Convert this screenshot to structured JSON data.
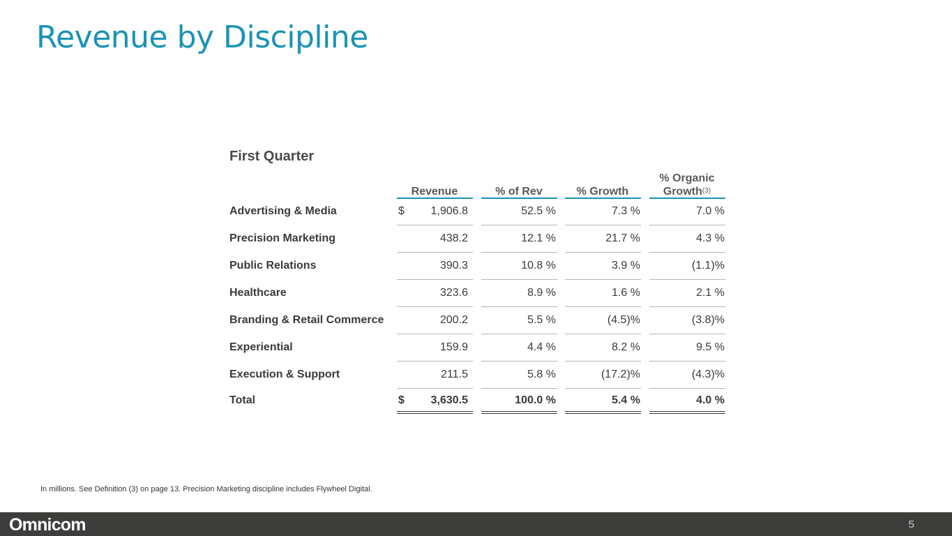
{
  "title": "Revenue by Discipline",
  "section": "First Quarter",
  "columns": [
    {
      "label": "Revenue",
      "sup": ""
    },
    {
      "label": "% of Rev",
      "sup": ""
    },
    {
      "label": "% Growth",
      "sup": ""
    },
    {
      "label_line1": "% Organic",
      "label_line2": "Growth",
      "sup": "(3)"
    }
  ],
  "rows": [
    {
      "label": "Advertising & Media",
      "currency": "$",
      "revenue": "1,906.8",
      "pct_rev": "52.5 %",
      "growth": "7.3 %",
      "organic": "7.0 %"
    },
    {
      "label": "Precision Marketing",
      "currency": "",
      "revenue": "438.2",
      "pct_rev": "12.1 %",
      "growth": "21.7 %",
      "organic": "4.3 %"
    },
    {
      "label": "Public Relations",
      "currency": "",
      "revenue": "390.3",
      "pct_rev": "10.8 %",
      "growth": "3.9 %",
      "organic": "(1.1)%"
    },
    {
      "label": "Healthcare",
      "currency": "",
      "revenue": "323.6",
      "pct_rev": "8.9 %",
      "growth": "1.6 %",
      "organic": "2.1 %"
    },
    {
      "label": "Branding & Retail Commerce",
      "currency": "",
      "revenue": "200.2",
      "pct_rev": "5.5 %",
      "growth": "(4.5)%",
      "organic": "(3.8)%"
    },
    {
      "label": "Experiential",
      "currency": "",
      "revenue": "159.9",
      "pct_rev": "4.4 %",
      "growth": "8.2 %",
      "organic": "9.5 %"
    },
    {
      "label": "Execution & Support",
      "currency": "",
      "revenue": "211.5",
      "pct_rev": "5.8 %",
      "growth": "(17.2)%",
      "organic": "(4.3)%"
    }
  ],
  "total": {
    "label": "Total",
    "currency": "$",
    "revenue": "3,630.5",
    "pct_rev": "100.0 %",
    "growth": "5.4 %",
    "organic": "4.0 %"
  },
  "footnote": "In millions.  See Definition (3) on page 13.  Precision Marketing discipline includes Flywheel Digital.",
  "footer": {
    "logo": "Omnicom",
    "page_number": "5"
  },
  "colors": {
    "accent": "#1a93b6",
    "footer_bg": "#3d3d3b"
  }
}
